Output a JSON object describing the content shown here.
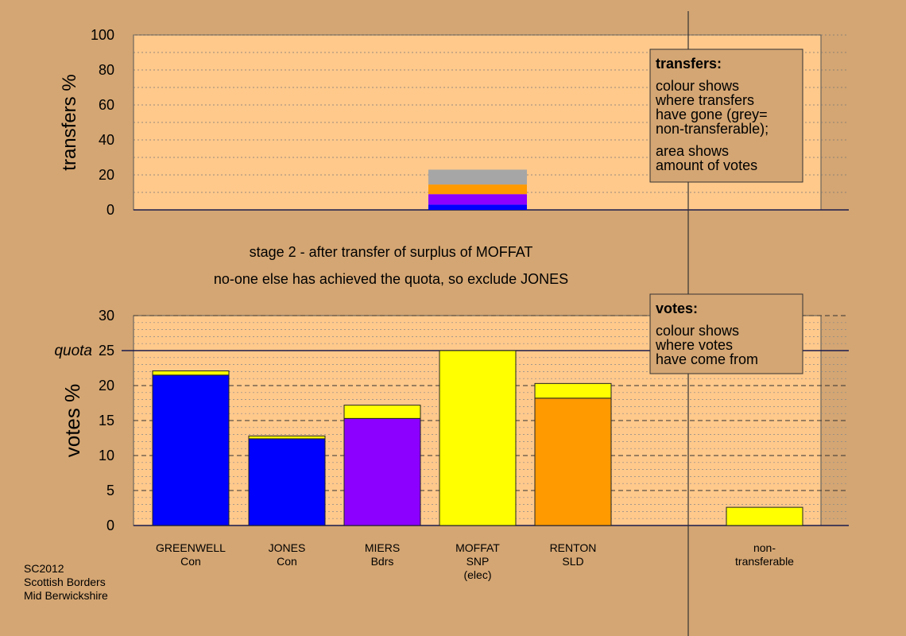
{
  "chart_data": [
    {
      "type": "bar",
      "stacked": true,
      "ylabel": "transfers %",
      "ylim": [
        0,
        100
      ],
      "yticks": [
        0,
        20,
        40,
        60,
        80,
        100
      ],
      "categories": [
        "MOFFAT"
      ],
      "series": [
        {
          "color": "#0000ff",
          "values": [
            3
          ]
        },
        {
          "color": "#8b00ff",
          "values": [
            6
          ]
        },
        {
          "color": "#ff9a00",
          "values": [
            5.5
          ]
        },
        {
          "color": "#a6a6a6",
          "values": [
            8.5
          ]
        }
      ],
      "legend": {
        "title": "transfers:",
        "lines": [
          "colour shows",
          "where transfers",
          "have gone (grey=",
          "non-transferable);",
          "area shows",
          "amount of votes"
        ]
      }
    },
    {
      "type": "bar",
      "stacked": true,
      "ylabel": "votes %",
      "ylim": [
        0,
        30
      ],
      "yticks": [
        0,
        5,
        10,
        15,
        20,
        25,
        30
      ],
      "quota": {
        "label": "quota",
        "value": 25
      },
      "categories": [
        [
          "GREENWELL",
          "Con"
        ],
        [
          "JONES",
          "Con"
        ],
        [
          "MIERS",
          "Bdrs"
        ],
        [
          "MOFFAT",
          "SNP",
          "(elec)"
        ],
        [
          "RENTON",
          "SLD"
        ],
        [
          "non-",
          "transferable"
        ]
      ],
      "bars": [
        {
          "segments": [
            {
              "value": 21.5,
              "color": "#0000ff"
            },
            {
              "value": 0.6,
              "color": "#ffff00"
            }
          ]
        },
        {
          "segments": [
            {
              "value": 12.4,
              "color": "#0000ff"
            },
            {
              "value": 0.4,
              "color": "#ffff00"
            }
          ]
        },
        {
          "segments": [
            {
              "value": 15.3,
              "color": "#8b00ff"
            },
            {
              "value": 1.9,
              "color": "#ffff00"
            }
          ]
        },
        {
          "segments": [
            {
              "value": 25.0,
              "color": "#ffff00"
            }
          ]
        },
        {
          "segments": [
            {
              "value": 18.2,
              "color": "#ff9a00"
            },
            {
              "value": 2.1,
              "color": "#ffff00"
            }
          ]
        },
        {
          "segments": [
            {
              "value": 2.6,
              "color": "#ffff00"
            }
          ]
        }
      ],
      "legend": {
        "title": "votes:",
        "lines": [
          "colour shows",
          "where votes",
          "have come from"
        ]
      }
    }
  ],
  "captions": {
    "stage": "stage 2 - after transfer of surplus of MOFFAT",
    "note": "no-one else has achieved the quota, so exclude JONES"
  },
  "footer": [
    "SC2012",
    "Scottish Borders",
    "Mid Berwickshire"
  ],
  "colors": {
    "background": "#d4a673",
    "panel": "#ffc98c",
    "line": "#1a1a4d"
  }
}
